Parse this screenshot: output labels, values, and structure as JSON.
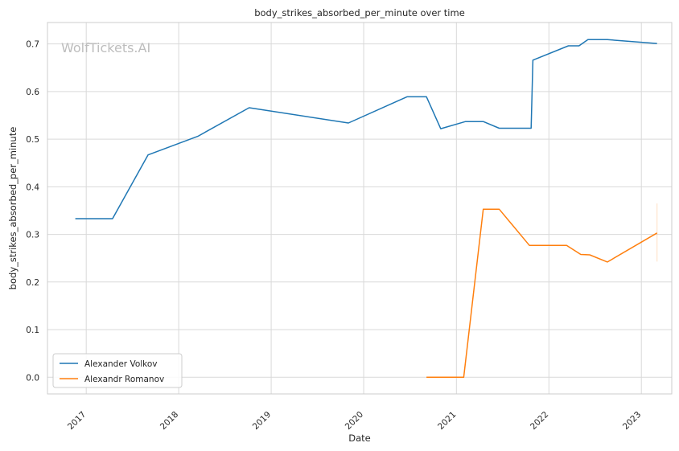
{
  "watermark": "WolfTickets.AI",
  "chart_data": {
    "type": "line",
    "title": "body_strikes_absorbed_per_minute over time",
    "xlabel": "Date",
    "ylabel": "body_strikes_absorbed_per_minute",
    "x_ticks": [
      "2017",
      "2018",
      "2019",
      "2020",
      "2021",
      "2022",
      "2023"
    ],
    "y_ticks": [
      "0.0",
      "0.1",
      "0.2",
      "0.3",
      "0.4",
      "0.5",
      "0.6",
      "0.7"
    ],
    "xlim": [
      "2016-08-01",
      "2023-05-01"
    ],
    "ylim": [
      -0.035,
      0.745
    ],
    "grid": true,
    "legend_position": "lower-left",
    "series": [
      {
        "name": "Alexander Volkov",
        "color": "#1f77b4",
        "points": [
          [
            "2016-11-19",
            0.333
          ],
          [
            "2017-04-15",
            0.333
          ],
          [
            "2017-09-02",
            0.467
          ],
          [
            "2018-03-17",
            0.506
          ],
          [
            "2018-10-06",
            0.566
          ],
          [
            "2019-11-02",
            0.534
          ],
          [
            "2020-06-20",
            0.589
          ],
          [
            "2020-09-05",
            0.589
          ],
          [
            "2020-10-31",
            0.522
          ],
          [
            "2021-02-06",
            0.537
          ],
          [
            "2021-04-17",
            0.537
          ],
          [
            "2021-06-19",
            0.523
          ],
          [
            "2021-10-23",
            0.523
          ],
          [
            "2021-10-30",
            0.666
          ],
          [
            "2022-03-19",
            0.696
          ],
          [
            "2022-04-30",
            0.696
          ],
          [
            "2022-06-04",
            0.709
          ],
          [
            "2022-08-20",
            0.709
          ],
          [
            "2023-03-04",
            0.701
          ]
        ]
      },
      {
        "name": "Alexandr Romanov",
        "color": "#ff7f0e",
        "points": [
          [
            "2020-09-05",
            0.0
          ],
          [
            "2021-01-30",
            0.0
          ],
          [
            "2021-04-17",
            0.353
          ],
          [
            "2021-06-19",
            0.353
          ],
          [
            "2021-10-16",
            0.277
          ],
          [
            "2022-03-12",
            0.277
          ],
          [
            "2022-05-07",
            0.258
          ],
          [
            "2022-06-11",
            0.257
          ],
          [
            "2022-08-20",
            0.242
          ],
          [
            "2023-03-04",
            0.303
          ]
        ],
        "error_bar": {
          "x": "2023-03-04",
          "low": 0.243,
          "high": 0.365
        }
      }
    ]
  }
}
